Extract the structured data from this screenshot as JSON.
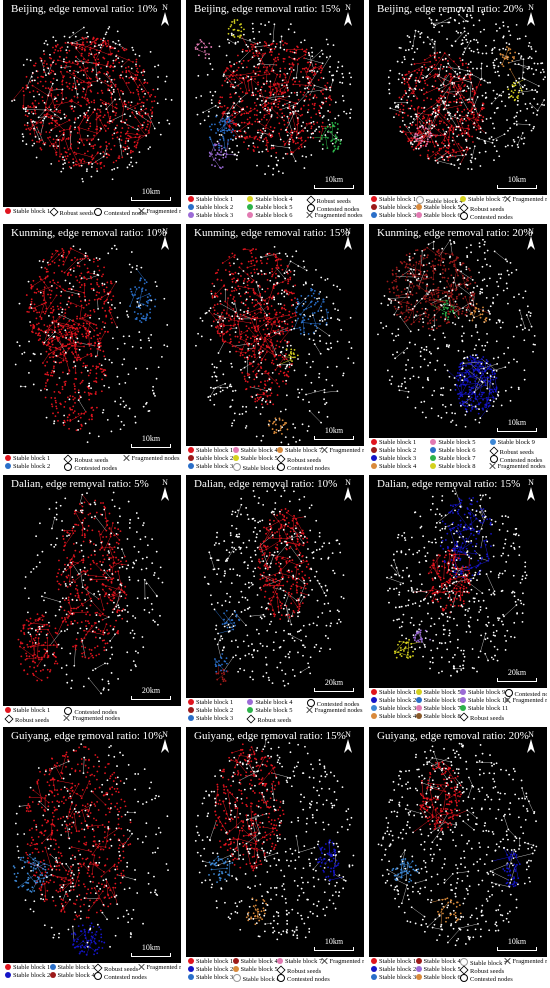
{
  "north_label": "N",
  "scale_labels": {
    "beijing": "10km",
    "kunming": "10km",
    "dalian": "20km",
    "guiyang": "10km"
  },
  "colors": {
    "red": "#e0141e",
    "blue": "#2a6fc9",
    "lightblue": "#3d88d6",
    "purple": "#9b6bd6",
    "yellow": "#d4d11f",
    "green": "#2db34a",
    "orange": "#d98a3b",
    "pink": "#e27ab2",
    "white": "#ffffff",
    "darkred": "#9c1a1a",
    "navy": "#1515c8",
    "lime": "#8bd33a",
    "brown": "#8a5a2b"
  },
  "legend_terms": {
    "robust": "Robust seeds",
    "contested": "Contested nodes",
    "fragmented": "Fragmented nodes"
  },
  "panels": [
    {
      "id": "bj10",
      "title": "Beijing, edge removal ratio: 10%",
      "legend": [
        [
          "Stable block 1",
          "red"
        ],
        [
          "Robust seeds",
          "diamond"
        ],
        [
          "Contested nodes",
          "circ"
        ],
        [
          "Fragmented nodes",
          "cross"
        ]
      ]
    },
    {
      "id": "bj15",
      "title": "Beijing, edge removal ratio: 15%",
      "legend": [
        [
          "Stable block 1",
          "red"
        ],
        [
          "Stable block 2",
          "blue"
        ],
        [
          "Stable block 3",
          "purple"
        ],
        [
          "Stable block 4",
          "yellow"
        ],
        [
          "Stable block 5",
          "green"
        ],
        [
          "Stable block 6",
          "pink"
        ],
        [
          "Robust seeds",
          "diamond"
        ],
        [
          "Contested nodes",
          "circ"
        ],
        [
          "Fragmented nodes",
          "cross"
        ]
      ]
    },
    {
      "id": "bj20",
      "title": "Beijing, edge removal ratio: 20%",
      "legend": [
        [
          "Stable block 1",
          "red"
        ],
        [
          "Stable block 2",
          "darkred"
        ],
        [
          "Stable block 3",
          "blue"
        ],
        [
          "Stable block 4",
          "white"
        ],
        [
          "Stable block 5",
          "orange"
        ],
        [
          "Stable block 6",
          "pink"
        ],
        [
          "Stable block 7",
          "yellow"
        ],
        [
          "Robust seeds",
          "diamond"
        ],
        [
          "Contested nodes",
          "circ"
        ],
        [
          "Fragmented nodes",
          "cross"
        ]
      ]
    },
    {
      "id": "km10",
      "title": "Kunming, edge removal ratio: 10%",
      "legend": [
        [
          "Stable block 1",
          "red"
        ],
        [
          "Stable block 2",
          "blue"
        ],
        [
          "Robust seeds",
          "diamond"
        ],
        [
          "Contested nodes",
          "circ"
        ],
        [
          "Fragmented nodes",
          "cross"
        ]
      ]
    },
    {
      "id": "km15",
      "title": "Kunming, edge removal ratio: 15%",
      "legend": [
        [
          "Stable block 1",
          "red"
        ],
        [
          "Stable block 2",
          "darkred"
        ],
        [
          "Stable block 3",
          "blue"
        ],
        [
          "Stable block 4",
          "pink"
        ],
        [
          "Stable block 5",
          "yellow"
        ],
        [
          "Stable block 6",
          "white"
        ],
        [
          "Stable block 7",
          "orange"
        ],
        [
          "Robust seeds",
          "diamond"
        ],
        [
          "Contested nodes",
          "circ"
        ],
        [
          "Fragmented nodes",
          "cross"
        ]
      ]
    },
    {
      "id": "km20",
      "title": "Kunming, edge removal ratio: 20%",
      "legend": [
        [
          "Stable block 1",
          "red"
        ],
        [
          "Stable block 2",
          "darkred"
        ],
        [
          "Stable block 3",
          "navy"
        ],
        [
          "Stable block 4",
          "orange"
        ],
        [
          "Stable block 5",
          "pink"
        ],
        [
          "Stable block 6",
          "blue"
        ],
        [
          "Stable block 7",
          "green"
        ],
        [
          "Stable block 8",
          "yellow"
        ],
        [
          "Stable block 9",
          "lightblue"
        ],
        [
          "Robust seeds",
          "diamond"
        ],
        [
          "Contested nodes",
          "circ"
        ],
        [
          "Fragmented nodes",
          "cross"
        ]
      ]
    },
    {
      "id": "dl5",
      "title": "Dalian, edge removal ratio: 5%",
      "legend": [
        [
          "Stable block 1",
          "red"
        ],
        [
          "Robust seeds",
          "diamond"
        ],
        [
          "Contested nodes",
          "circ"
        ],
        [
          "Fragmented nodes",
          "cross"
        ]
      ]
    },
    {
      "id": "dl10",
      "title": "Dalian, edge removal ratio: 10%",
      "legend": [
        [
          "Stable block 1",
          "red"
        ],
        [
          "Stable block 2",
          "darkred"
        ],
        [
          "Stable block 3",
          "blue"
        ],
        [
          "Stable block 4",
          "purple"
        ],
        [
          "Stable block 5",
          "green"
        ],
        [
          "Robust seeds",
          "diamond"
        ],
        [
          "Contested nodes",
          "circ"
        ],
        [
          "Fragmented nodes",
          "cross"
        ]
      ]
    },
    {
      "id": "dl15",
      "title": "Dalian, edge removal ratio: 15%",
      "legend": [
        [
          "Stable block 1",
          "red"
        ],
        [
          "Stable block 2",
          "navy"
        ],
        [
          "Stable block 3",
          "lightblue"
        ],
        [
          "Stable block 4",
          "orange"
        ],
        [
          "Stable block 5",
          "yellow"
        ],
        [
          "Stable block 6",
          "blue"
        ],
        [
          "Stable block 7",
          "pink"
        ],
        [
          "Stable block 8",
          "brown"
        ],
        [
          "Stable block 9",
          "purple"
        ],
        [
          "Stable block 10",
          "purple"
        ],
        [
          "Stable block 11",
          "green"
        ],
        [
          "Robust seeds",
          "diamond"
        ],
        [
          "Contested nodes",
          "circ"
        ],
        [
          "Fragmented nodes",
          "cross"
        ]
      ]
    },
    {
      "id": "gy10",
      "title": "Guiyang, edge removal ratio: 10%",
      "legend": [
        [
          "Stable block 1",
          "red"
        ],
        [
          "Stable block 2",
          "navy"
        ],
        [
          "Stable block 3",
          "blue"
        ],
        [
          "Stable block 4",
          "darkred"
        ],
        [
          "Robust seeds",
          "diamond"
        ],
        [
          "Contested nodes",
          "circ"
        ],
        [
          "Fragmented nodes",
          "cross"
        ]
      ]
    },
    {
      "id": "gy15",
      "title": "Guiyang, edge removal ratio: 15%",
      "legend": [
        [
          "Stable block 1",
          "red"
        ],
        [
          "Stable block 2",
          "navy"
        ],
        [
          "Stable block 3",
          "blue"
        ],
        [
          "Stable block 4",
          "darkred"
        ],
        [
          "Stable block 5",
          "orange"
        ],
        [
          "Stable block 6",
          "white"
        ],
        [
          "Stable block 7",
          "pink"
        ],
        [
          "Robust seeds",
          "diamond"
        ],
        [
          "Contested nodes",
          "circ"
        ],
        [
          "Fragmented nodes",
          "cross"
        ]
      ]
    },
    {
      "id": "gy20",
      "title": "Guiyang, edge removal ratio: 20%",
      "legend": [
        [
          "Stable block 1",
          "red"
        ],
        [
          "Stable block 2",
          "navy"
        ],
        [
          "Stable block 3",
          "blue"
        ],
        [
          "Stable block 4",
          "darkred"
        ],
        [
          "Stable block 5",
          "purple"
        ],
        [
          "Stable block 6",
          "orange"
        ],
        [
          "Stable block 7",
          "white"
        ],
        [
          "Robust seeds",
          "diamond"
        ],
        [
          "Contested nodes",
          "circ"
        ],
        [
          "Fragmented nodes",
          "cross"
        ]
      ]
    }
  ]
}
